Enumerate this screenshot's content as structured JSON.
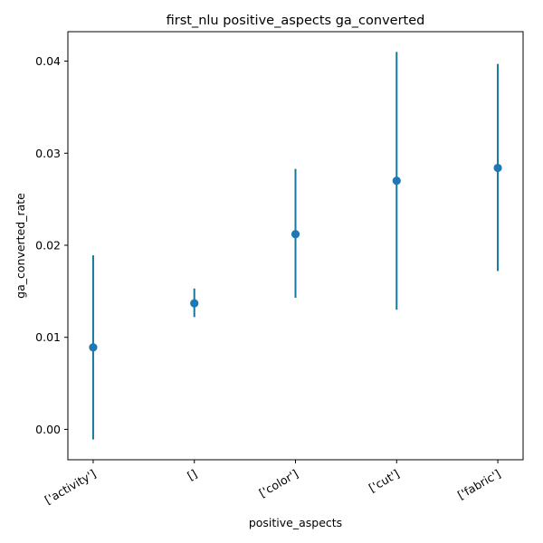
{
  "chart_data": {
    "type": "scatter",
    "title": "first_nlu positive_aspects ga_converted",
    "xlabel": "positive_aspects",
    "ylabel": "ga_converted_rate",
    "categories": [
      "['activity']",
      "[]",
      "['color']",
      "['cut']",
      "['fabric']"
    ],
    "values": [
      0.0089,
      0.0137,
      0.0212,
      0.027,
      0.0284
    ],
    "error_low": [
      -0.0011,
      0.0122,
      0.0143,
      0.013,
      0.0172
    ],
    "error_high": [
      0.0189,
      0.0153,
      0.0283,
      0.041,
      0.0397
    ],
    "ylim": [
      -0.0033,
      0.0432
    ],
    "yticks": [
      0.0,
      0.01,
      0.02,
      0.03,
      0.04
    ],
    "ytick_labels": [
      "0.00",
      "0.01",
      "0.02",
      "0.03",
      "0.04"
    ],
    "grid": false,
    "legend": "none",
    "marker_color": "#1f77b4",
    "errorbar_color": "#17769d"
  }
}
